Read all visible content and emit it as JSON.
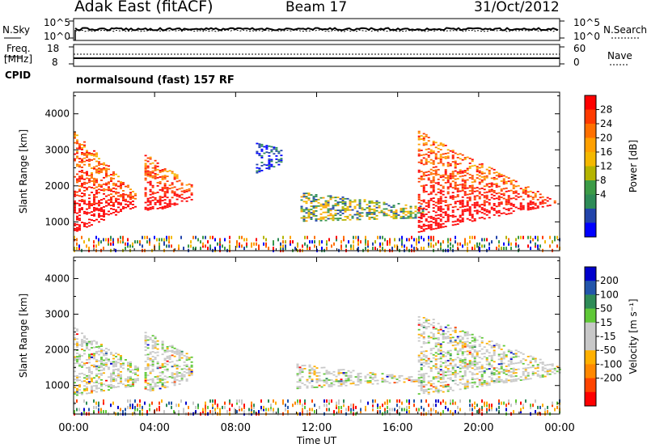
{
  "header": {
    "station": "Adak East (fitACF)",
    "beam": "Beam 17",
    "date": "31/Oct/2012"
  },
  "top_panel": {
    "left_label": "N.Sky",
    "right_label": "N.Search",
    "left_ticks": [
      "10^5",
      "10^0"
    ],
    "right_ticks": [
      "10^5",
      "10^0"
    ]
  },
  "freq_panel": {
    "left_label_1": "Freq.",
    "left_label_2": "[MHz]",
    "right_label": "Nave",
    "left_ticks": [
      "18",
      "8"
    ],
    "right_ticks": [
      "60",
      "0"
    ]
  },
  "cpid": {
    "label": "CPID",
    "text": "normalsound (fast) 157 RF"
  },
  "chart_data": [
    {
      "type": "heatmap",
      "name": "power",
      "ylabel": "Slant Range [km]",
      "ylim": [
        200,
        4600
      ],
      "xlim": [
        0,
        24
      ],
      "yticks": [
        1000,
        2000,
        3000,
        4000
      ],
      "colorbar": {
        "label": "Power [dB]",
        "ticks": [
          "28",
          "24",
          "20",
          "16",
          "12",
          "8",
          "4"
        ],
        "colors": [
          "#ff0000",
          "#ff3a00",
          "#ff7000",
          "#ffa000",
          "#f4b800",
          "#b4b400",
          "#3c9b46",
          "#2e8b57",
          "#2244aa",
          "#0000ff"
        ]
      },
      "regions": [
        {
          "t": [
            0.0,
            3.0
          ],
          "r_low": [
            700,
            1400
          ],
          "r_high": [
            1800,
            3500
          ],
          "level": "high"
        },
        {
          "t": [
            3.5,
            5.8
          ],
          "r_low": [
            1200,
            1600
          ],
          "r_high": [
            2000,
            2900
          ],
          "level": "high"
        },
        {
          "t": [
            9.0,
            10.2
          ],
          "r_low": [
            2300,
            2600
          ],
          "r_high": [
            3000,
            3200
          ],
          "level": "low"
        },
        {
          "t": [
            11.2,
            17.3
          ],
          "r_low": [
            1000,
            1100
          ],
          "r_high": [
            1400,
            1800
          ],
          "level": "mid"
        },
        {
          "t": [
            17.0,
            24.0
          ],
          "r_low": [
            700,
            1500
          ],
          "r_high": [
            1500,
            3500
          ],
          "level": "high"
        }
      ]
    },
    {
      "type": "heatmap",
      "name": "velocity",
      "ylabel": "Slant Range [km]",
      "xlabel": "Time UT",
      "ylim": [
        200,
        4600
      ],
      "xlim": [
        0,
        24
      ],
      "yticks": [
        1000,
        2000,
        3000,
        4000
      ],
      "xticks": [
        "00:00",
        "04:00",
        "08:00",
        "12:00",
        "16:00",
        "20:00",
        "00:00"
      ],
      "colorbar": {
        "label": "Velocity [m s⁻¹]",
        "ticks": [
          "200",
          "100",
          "50",
          "15",
          "-15",
          "-50",
          "-100",
          "-200"
        ],
        "colors": [
          "#0000cc",
          "#2255aa",
          "#2e8b57",
          "#5fc837",
          "#c8c8c8",
          "#c8c8c8",
          "#ffb000",
          "#ff8800",
          "#ff4400",
          "#ff0000"
        ]
      },
      "regions": [
        {
          "t": [
            0.0,
            3.2
          ],
          "r_low": [
            700,
            1000
          ],
          "r_high": [
            1500,
            2600
          ],
          "level": "neutral"
        },
        {
          "t": [
            3.5,
            5.8
          ],
          "r_low": [
            800,
            1100
          ],
          "r_high": [
            1800,
            2500
          ],
          "level": "neutral"
        },
        {
          "t": [
            11.0,
            17.0
          ],
          "r_low": [
            900,
            1100
          ],
          "r_high": [
            1200,
            1600
          ],
          "level": "neutral"
        },
        {
          "t": [
            17.0,
            24.0
          ],
          "r_low": [
            700,
            1300
          ],
          "r_high": [
            1500,
            3000
          ],
          "level": "neutral"
        }
      ]
    }
  ]
}
